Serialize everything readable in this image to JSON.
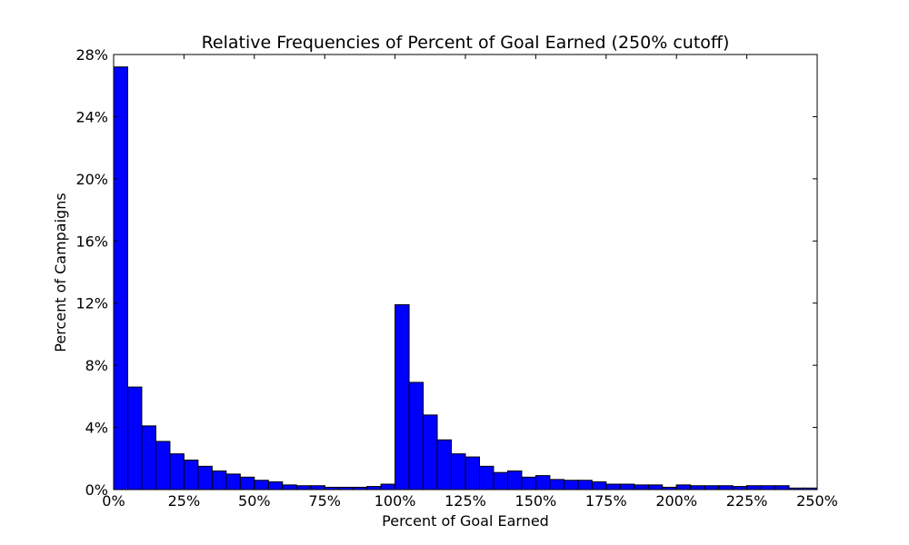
{
  "chart_data": {
    "type": "bar",
    "title": "Relative Frequencies of Percent of Goal Earned (250% cutoff)",
    "xlabel": "Percent of Goal Earned",
    "ylabel": "Percent of Campaigns",
    "bin_width": 5,
    "xlim": [
      0,
      250
    ],
    "ylim": [
      0,
      28
    ],
    "x_ticks": [
      0,
      25,
      50,
      75,
      100,
      125,
      150,
      175,
      200,
      225,
      250
    ],
    "x_tick_labels": [
      "0%",
      "25%",
      "50%",
      "75%",
      "100%",
      "125%",
      "150%",
      "175%",
      "200%",
      "225%",
      "250%"
    ],
    "y_ticks": [
      0,
      4,
      8,
      12,
      16,
      20,
      24,
      28
    ],
    "y_tick_labels": [
      "0%",
      "4%",
      "8%",
      "12%",
      "16%",
      "20%",
      "24%",
      "28%"
    ],
    "bin_starts": [
      0,
      5,
      10,
      15,
      20,
      25,
      30,
      35,
      40,
      45,
      50,
      55,
      60,
      65,
      70,
      75,
      80,
      85,
      90,
      95,
      100,
      105,
      110,
      115,
      120,
      125,
      130,
      135,
      140,
      145,
      150,
      155,
      160,
      165,
      170,
      175,
      180,
      185,
      190,
      195,
      200,
      205,
      210,
      215,
      220,
      225,
      230,
      235,
      240,
      245
    ],
    "values": [
      27.2,
      6.6,
      4.1,
      3.1,
      2.3,
      1.9,
      1.5,
      1.2,
      1.0,
      0.8,
      0.6,
      0.5,
      0.3,
      0.25,
      0.25,
      0.15,
      0.15,
      0.15,
      0.2,
      0.35,
      11.9,
      6.9,
      4.8,
      3.2,
      2.3,
      2.1,
      1.5,
      1.1,
      1.2,
      0.8,
      0.9,
      0.65,
      0.6,
      0.6,
      0.5,
      0.35,
      0.35,
      0.3,
      0.3,
      0.15,
      0.3,
      0.25,
      0.25,
      0.25,
      0.2,
      0.25,
      0.25,
      0.25,
      0.1,
      0.1
    ],
    "bar_color": "#0000ff",
    "edge_color": "#000000",
    "grid": false,
    "legend": "none"
  }
}
